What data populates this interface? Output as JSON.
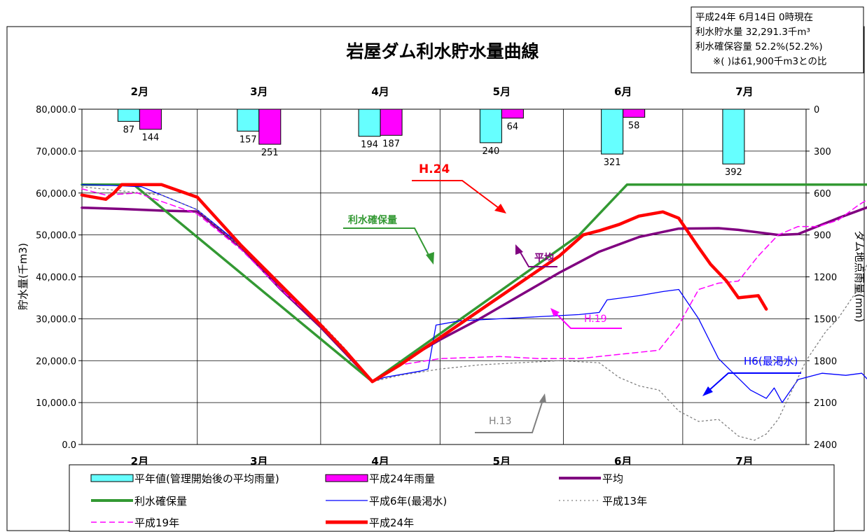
{
  "info_box": {
    "line1": "平成24年  6月14日  0時現在",
    "line2": "利水貯水量    32,291.3千m³",
    "line3": "利水確保容量   52.2%(52.2%)",
    "line4": "※(  )は61,900千m3との比"
  },
  "chart_data": {
    "type": "line",
    "title": "岩屋ダム利水貯水量曲線",
    "ylabel": "貯水量(千m3)",
    "y2label": "ダム地点雨量(mm)",
    "ylim": [
      0,
      80000
    ],
    "y2lim": [
      0,
      2400
    ],
    "y_ticks": [
      "80,000.0",
      "70,000.0",
      "60,000.0",
      "50,000.0",
      "40,000.0",
      "30,000.0",
      "20,000.0",
      "10,000.0",
      "0.0"
    ],
    "y2_ticks": [
      "0",
      "300",
      "600",
      "900",
      "1200",
      "1500",
      "1800",
      "2100",
      "2400"
    ],
    "months": [
      "2月",
      "3月",
      "4月",
      "5月",
      "6月",
      "7月"
    ],
    "month_days": [
      29,
      31,
      30,
      31,
      30,
      31
    ],
    "rainfall": {
      "series": [
        {
          "name": "平年値(管理開始後の平均雨量)",
          "color": "#66FFFF",
          "values": [
            87,
            157,
            194,
            240,
            321,
            392
          ]
        },
        {
          "name": "平成24年雨量",
          "color": "#FF00FF",
          "values": [
            144,
            251,
            187,
            64,
            58,
            null
          ]
        }
      ]
    },
    "storage_series": [
      {
        "name": "平均",
        "color": "#800080",
        "width": 3.5,
        "dash": "",
        "points": [
          [
            0,
            56500
          ],
          [
            10,
            56200
          ],
          [
            20,
            55800
          ],
          [
            29,
            55600
          ],
          [
            40,
            47000
          ],
          [
            50,
            37000
          ],
          [
            60,
            28000
          ],
          [
            66,
            22000
          ],
          [
            73,
            15000
          ],
          [
            80,
            19500
          ],
          [
            90,
            25000
          ],
          [
            100,
            30000
          ],
          [
            110,
            35500
          ],
          [
            120,
            41000
          ],
          [
            130,
            46000
          ],
          [
            140,
            49500
          ],
          [
            150,
            51500
          ],
          [
            160,
            51600
          ],
          [
            165,
            51200
          ],
          [
            175,
            50000
          ],
          [
            180,
            50200
          ],
          [
            190,
            54000
          ],
          [
            200,
            57500
          ],
          [
            210,
            59000
          ],
          [
            220,
            59500
          ],
          [
            226,
            60000
          ],
          [
            235,
            59500
          ],
          [
            243,
            59000
          ]
        ]
      },
      {
        "name": "利水確保量",
        "color": "#339933",
        "width": 3.5,
        "dash": "",
        "points": [
          [
            0,
            62000
          ],
          [
            8,
            62000
          ],
          [
            13,
            62000
          ],
          [
            73,
            15000
          ],
          [
            125,
            50000
          ],
          [
            137,
            62000
          ],
          [
            243,
            62000
          ]
        ]
      },
      {
        "name": "平成6年(最渇水)",
        "color": "#0000FF",
        "width": 1.3,
        "dash": "",
        "points": [
          [
            0,
            62000
          ],
          [
            8,
            61800
          ],
          [
            15,
            61500
          ],
          [
            29,
            56000
          ],
          [
            40,
            47500
          ],
          [
            50,
            38000
          ],
          [
            60,
            28500
          ],
          [
            66,
            22500
          ],
          [
            73,
            15000
          ],
          [
            76,
            16000
          ],
          [
            82,
            17000
          ],
          [
            85,
            17500
          ],
          [
            87,
            18000
          ],
          [
            89,
            28500
          ],
          [
            95,
            29500
          ],
          [
            105,
            30000
          ],
          [
            115,
            30500
          ],
          [
            125,
            31000
          ],
          [
            130,
            31500
          ],
          [
            132,
            34500
          ],
          [
            140,
            35500
          ],
          [
            146,
            36500
          ],
          [
            150,
            37000
          ],
          [
            155,
            30000
          ],
          [
            160,
            20500
          ],
          [
            168,
            13000
          ],
          [
            172,
            11000
          ],
          [
            174,
            13500
          ],
          [
            176,
            10000
          ],
          [
            180,
            15500
          ],
          [
            186,
            17000
          ],
          [
            192,
            16500
          ],
          [
            196,
            17000
          ],
          [
            200,
            13000
          ],
          [
            204,
            8000
          ],
          [
            209,
            7500
          ],
          [
            214,
            6000
          ],
          [
            220,
            4000
          ],
          [
            223,
            7500
          ],
          [
            226,
            5500
          ],
          [
            231,
            4000
          ],
          [
            236,
            3500
          ],
          [
            239,
            3000
          ],
          [
            242,
            2500
          ]
        ]
      },
      {
        "name": "平成13年",
        "color": "#808080",
        "width": 1.3,
        "dash": "2,4",
        "points": [
          [
            0,
            61500
          ],
          [
            10,
            60500
          ],
          [
            20,
            59500
          ],
          [
            29,
            56000
          ],
          [
            40,
            47000
          ],
          [
            50,
            38000
          ],
          [
            60,
            29000
          ],
          [
            66,
            23000
          ],
          [
            73,
            15000
          ],
          [
            80,
            16500
          ],
          [
            90,
            18000
          ],
          [
            100,
            19000
          ],
          [
            110,
            19500
          ],
          [
            120,
            20000
          ],
          [
            130,
            19500
          ],
          [
            135,
            16000
          ],
          [
            140,
            14000
          ],
          [
            145,
            13000
          ],
          [
            150,
            8000
          ],
          [
            155,
            5500
          ],
          [
            160,
            6000
          ],
          [
            165,
            2000
          ],
          [
            169,
            1000
          ],
          [
            172,
            2500
          ],
          [
            175,
            6000
          ],
          [
            178,
            12000
          ],
          [
            182,
            20000
          ],
          [
            187,
            27000
          ],
          [
            190,
            30000
          ],
          [
            195,
            37000
          ],
          [
            200,
            50000
          ],
          [
            205,
            54000
          ],
          [
            215,
            57000
          ],
          [
            225,
            60000
          ],
          [
            230,
            57500
          ],
          [
            235,
            55000
          ],
          [
            239,
            55500
          ],
          [
            243,
            50000
          ]
        ]
      },
      {
        "name": "平成19年",
        "color": "#FF00FF",
        "width": 1.5,
        "dash": "8,5",
        "points": [
          [
            0,
            61000
          ],
          [
            6,
            59500
          ],
          [
            14,
            60000
          ],
          [
            29,
            55000
          ],
          [
            40,
            46500
          ],
          [
            50,
            37000
          ],
          [
            60,
            28500
          ],
          [
            66,
            22500
          ],
          [
            73,
            15000
          ],
          [
            80,
            19000
          ],
          [
            90,
            20500
          ],
          [
            105,
            21000
          ],
          [
            115,
            20500
          ],
          [
            125,
            20500
          ],
          [
            135,
            21500
          ],
          [
            145,
            22500
          ],
          [
            150,
            28500
          ],
          [
            155,
            37000
          ],
          [
            160,
            38500
          ],
          [
            165,
            39000
          ],
          [
            170,
            45000
          ],
          [
            175,
            50000
          ],
          [
            180,
            52000
          ],
          [
            185,
            52000
          ],
          [
            190,
            53500
          ],
          [
            195,
            57000
          ],
          [
            200,
            60000
          ],
          [
            203,
            61500
          ],
          [
            243,
            61500
          ]
        ]
      },
      {
        "name": "平成24年",
        "color": "#FF0000",
        "width": 4.5,
        "dash": "",
        "points": [
          [
            0,
            59500
          ],
          [
            3,
            59000
          ],
          [
            6,
            58500
          ],
          [
            8,
            60000
          ],
          [
            10,
            62000
          ],
          [
            20,
            62000
          ],
          [
            29,
            59000
          ],
          [
            40,
            47500
          ],
          [
            50,
            38000
          ],
          [
            60,
            28500
          ],
          [
            66,
            22500
          ],
          [
            73,
            15000
          ],
          [
            80,
            19000
          ],
          [
            90,
            25500
          ],
          [
            100,
            32000
          ],
          [
            110,
            38500
          ],
          [
            120,
            45000
          ],
          [
            126,
            50000
          ],
          [
            130,
            51000
          ],
          [
            135,
            52500
          ],
          [
            140,
            54500
          ],
          [
            146,
            55500
          ],
          [
            150,
            54000
          ],
          [
            155,
            47000
          ],
          [
            158,
            43000
          ],
          [
            162,
            39000
          ],
          [
            165,
            35000
          ],
          [
            170,
            35500
          ],
          [
            172,
            32300
          ]
        ]
      }
    ],
    "legend": [
      {
        "label": "平年値(管理開始後の平均雨量)",
        "kind": "bar",
        "color": "#66FFFF"
      },
      {
        "label": "平成24年雨量",
        "kind": "bar",
        "color": "#FF00FF"
      },
      {
        "label": "平均",
        "kind": "line",
        "color": "#800080",
        "width": 4,
        "dash": ""
      },
      {
        "label": "利水確保量",
        "kind": "line",
        "color": "#339933",
        "width": 4,
        "dash": ""
      },
      {
        "label": "平成6年(最渇水)",
        "kind": "line",
        "color": "#0000FF",
        "width": 1.3,
        "dash": ""
      },
      {
        "label": "平成13年",
        "kind": "line",
        "color": "#808080",
        "width": 1.3,
        "dash": "2,4"
      },
      {
        "label": "平成19年",
        "kind": "line",
        "color": "#FF00FF",
        "width": 1.5,
        "dash": "8,5"
      },
      {
        "label": "平成24年",
        "kind": "line",
        "color": "#FF0000",
        "width": 5,
        "dash": ""
      }
    ],
    "annotations": [
      {
        "text": "H.24",
        "color": "#FF0000"
      },
      {
        "text": "利水確保量",
        "color": "#339933"
      },
      {
        "text": "平均",
        "color": "#800080"
      },
      {
        "text": "H.19",
        "color": "#FF00FF"
      },
      {
        "text": "H.13",
        "color": "#808080"
      },
      {
        "text": "H6(最渇水)",
        "color": "#0000FF"
      }
    ]
  }
}
